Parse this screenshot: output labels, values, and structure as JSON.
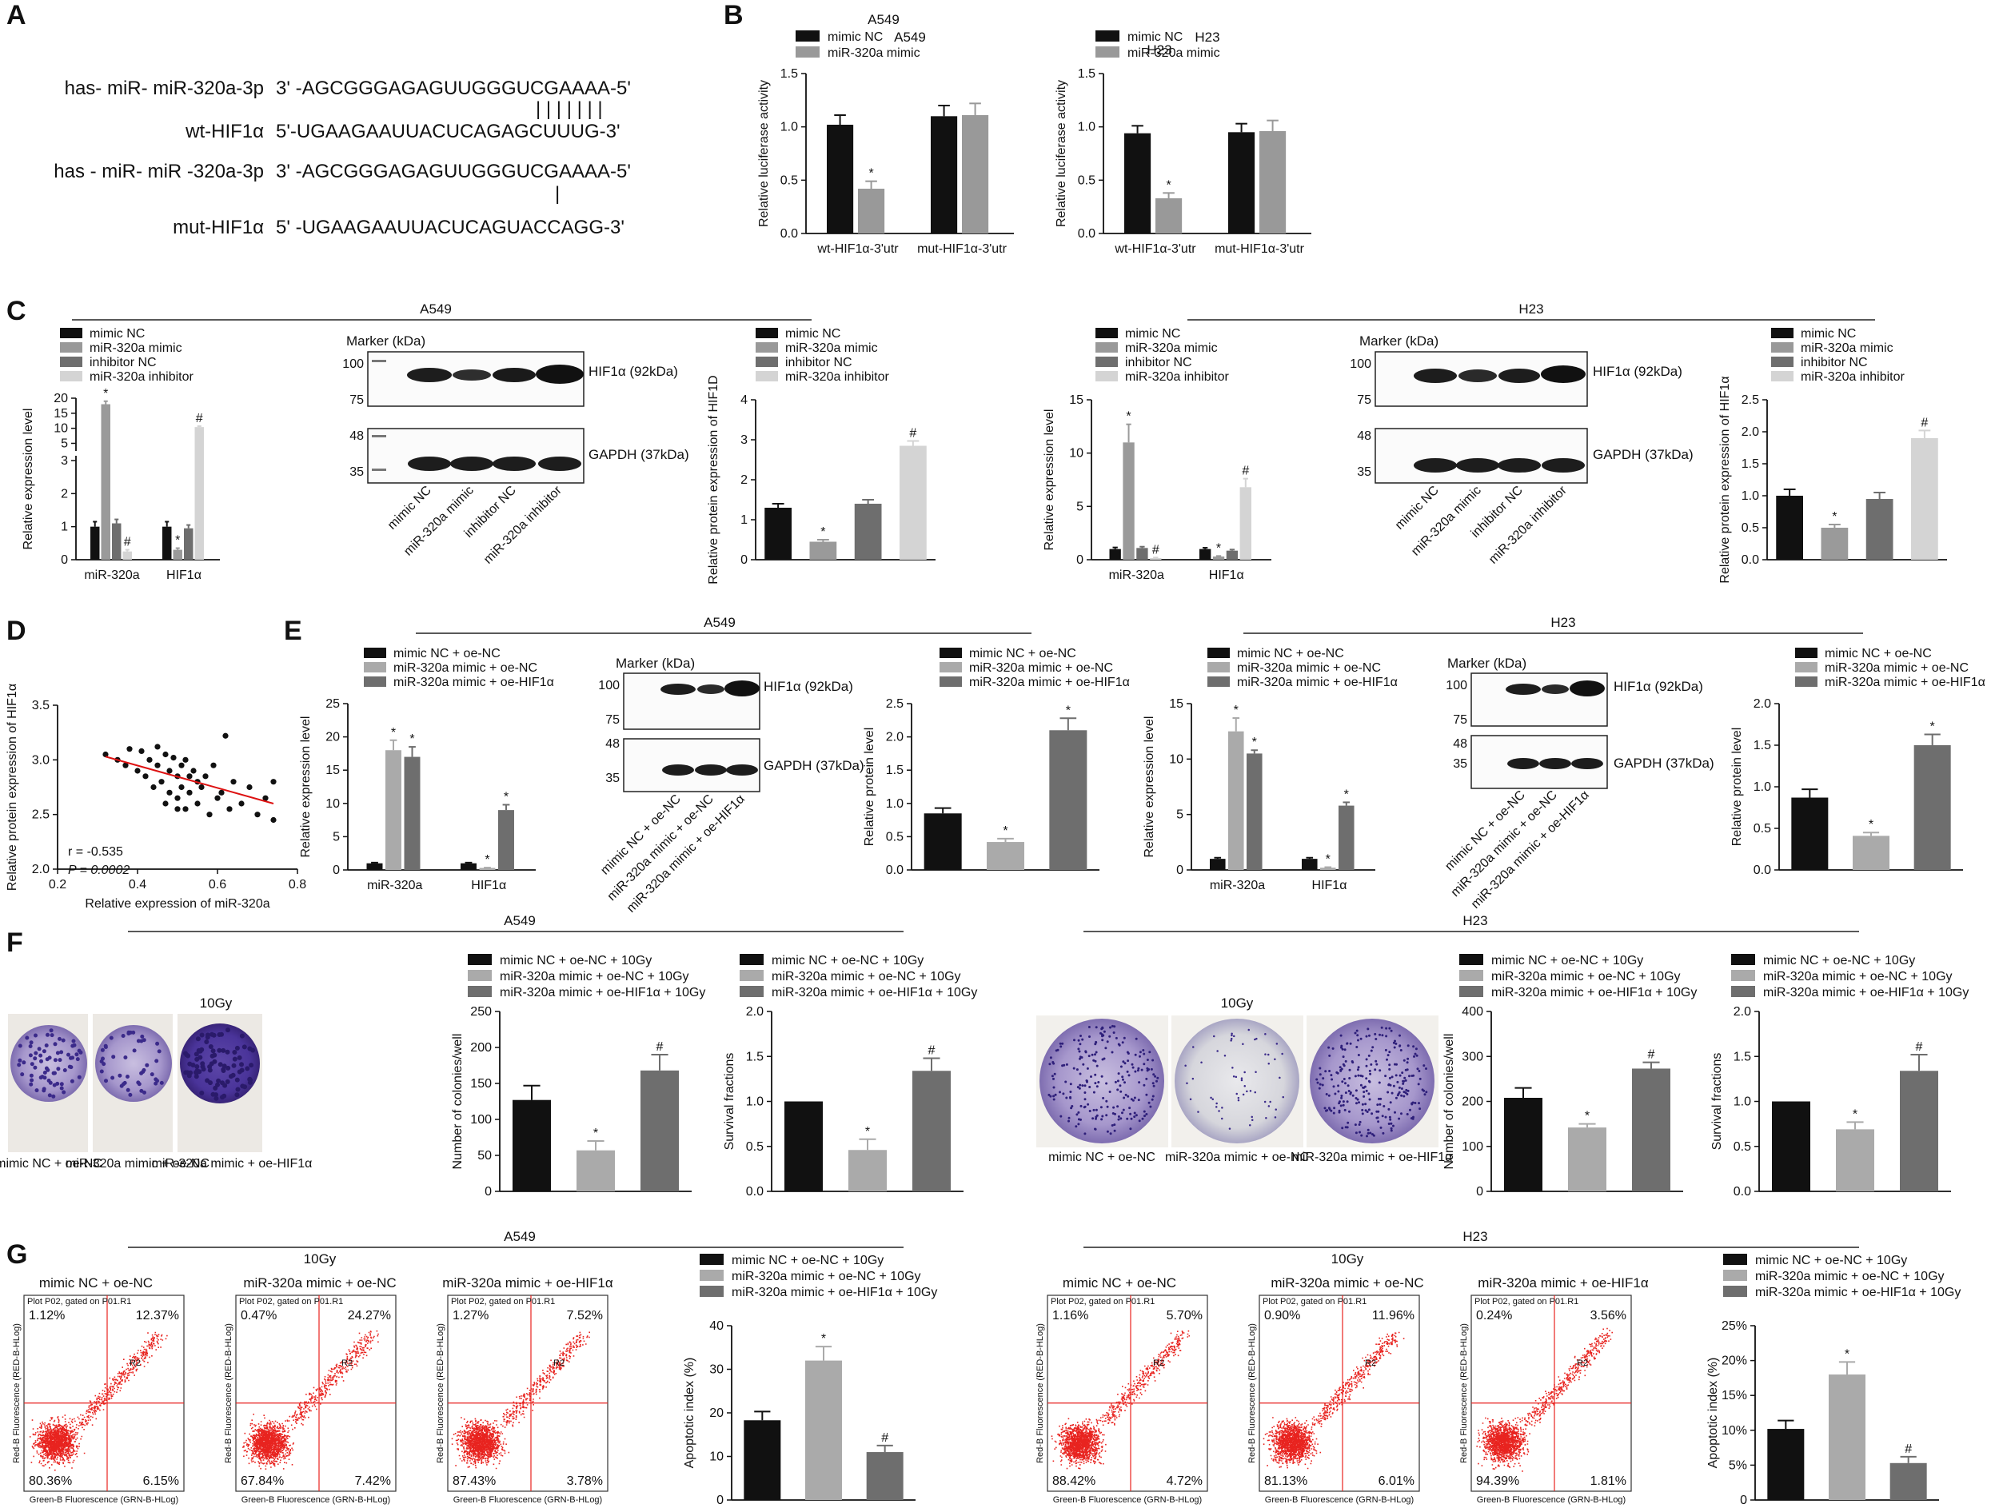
{
  "panels": {
    "A": "A",
    "B": "B",
    "C": "C",
    "D": "D",
    "E": "E",
    "F": "F",
    "G": "G"
  },
  "cells": {
    "a549": "A549",
    "h23": "H23"
  },
  "panelA": {
    "lines": [
      {
        "label": "has- miR- miR-320a-3p",
        "seq": "3' -AGCGGGAGAGUUGGGUCGAAAA-5'"
      },
      {
        "label": "wt-HIF1α",
        "seq": "5'-UGAAGAAUUACUCAGAGCUUUG-3'"
      },
      {
        "label": "has - miR- miR -320a-3p",
        "seq": "3' -AGCGGGAGAGUUGGGUCGAAAA-5'"
      },
      {
        "label": "mut-HIF1α",
        "seq": "5' -UGAAGAAUUACUCAGUACCAGG-3'"
      }
    ],
    "pairing1": "| | | | | | |",
    "pairing2": "|"
  },
  "legends": {
    "mimic2": [
      "mimic NC",
      "miR-320a mimic"
    ],
    "mimic4": [
      "mimic NC",
      "miR-320a mimic",
      "inhibitor NC",
      "miR-320a inhibitor"
    ],
    "oe3": [
      "mimic NC + oe-NC",
      "miR-320a mimic + oe-NC",
      "miR-320a mimic + oe-HIF1α"
    ],
    "oe3gy": [
      "mimic NC + oe-NC + 10Gy",
      "miR-320a mimic + oe-NC + 10Gy",
      "miR-320a mimic + oe-HIF1α + 10Gy"
    ]
  },
  "axis": {
    "luciferase": "Relative luciferase activity",
    "expression": "Relative expression level",
    "protein_hif1d": "Relative protein expression of HIF1D",
    "protein_hif1a": "Relative protein expression of HIF1α",
    "protein": "Relative protein level",
    "colonies": "Number of colonies/well",
    "survival": "Survival fractions",
    "apoptotic": "Apoptotic index (%)",
    "corr_x": "Relative expression of miR-320a",
    "corr_y": "Relative protein expression of HIF1α"
  },
  "western": {
    "marker": "Marker (kDa)",
    "hif": "HIF1α (92kDa)",
    "gapdh": "GAPDH (37kDa)",
    "mw": [
      "100",
      "75",
      "48",
      "35"
    ],
    "lanes4": [
      "mimic NC",
      "miR-320a mimic",
      "inhibitor NC",
      "miR-320a inhibitor"
    ],
    "lanes3": [
      "mimic NC + oe-NC",
      "miR-320a mimic + oe-NC",
      "miR-320a mimic + oe-HIF1α"
    ]
  },
  "colony": {
    "dose": "10Gy",
    "a549_labels": [
      "mimic NC + oe-NC",
      "miR-320a mimic + oe-NC",
      "miR-320a mimic + oe-HIF1α"
    ],
    "h23_labels": [
      "mimic NC + oe-NC",
      "miR-320a mimic + oe-NC",
      "miR-320a mimic + oe-HIF1α"
    ]
  },
  "flow": {
    "dose": "10Gy",
    "titles": [
      "mimic NC + oe-NC",
      "miR-320a mimic + oe-NC",
      "miR-320a mimic + oe-HIF1α"
    ],
    "header": "Plot P02, gated on P01.R1",
    "xaxis": "Green-B Fluorescence (GRN-B-HLog)",
    "yaxis": "Red-B Fluorescence (RED-B-HLog)",
    "gate": "R2",
    "a549_quadrants": [
      [
        "1.12%",
        "12.37%",
        "80.36%",
        "6.15%"
      ],
      [
        "0.47%",
        "24.27%",
        "67.84%",
        "7.42%"
      ],
      [
        "1.27%",
        "7.52%",
        "87.43%",
        "3.78%"
      ]
    ],
    "h23_quadrants": [
      [
        "1.16%",
        "5.70%",
        "88.42%",
        "4.72%"
      ],
      [
        "0.90%",
        "11.96%",
        "81.13%",
        "6.01%"
      ],
      [
        "0.24%",
        "3.56%",
        "94.39%",
        "1.81%"
      ]
    ]
  },
  "correlation": {
    "r": "r = -0.535",
    "p": "P = 0.0002"
  },
  "chart_data": [
    {
      "id": "B_A549",
      "type": "bar",
      "title": "A549",
      "categories": [
        "wt-HIF1α-3'utr",
        "mut-HIF1α-3'utr"
      ],
      "series": [
        {
          "name": "mimic NC",
          "values": [
            1.02,
            1.1
          ],
          "err": [
            0.09,
            0.1
          ]
        },
        {
          "name": "miR-320a mimic",
          "values": [
            0.42,
            1.11
          ],
          "err": [
            0.07,
            0.11
          ]
        }
      ],
      "ylim": [
        0,
        1.5
      ],
      "yticks": [
        "0.0",
        "0.5",
        "1.0",
        "1.5"
      ],
      "ylabel": "Relative luciferase activity",
      "marks": [
        [
          "",
          "*"
        ],
        [
          "",
          ""
        ]
      ]
    },
    {
      "id": "B_H23",
      "type": "bar",
      "title": "H23",
      "categories": [
        "wt-HIF1α-3'utr",
        "mut-HIF1α-3'utr"
      ],
      "series": [
        {
          "name": "mimic NC",
          "values": [
            0.94,
            0.95
          ],
          "err": [
            0.07,
            0.08
          ]
        },
        {
          "name": "miR-320a mimic",
          "values": [
            0.33,
            0.96
          ],
          "err": [
            0.05,
            0.1
          ]
        }
      ],
      "ylim": [
        0,
        1.5
      ],
      "yticks": [
        "0.0",
        "0.5",
        "1.0",
        "1.5"
      ],
      "ylabel": "Relative luciferase activity",
      "marks": [
        [
          "",
          "*"
        ],
        [
          "",
          ""
        ]
      ]
    },
    {
      "id": "C_A549_qpcr",
      "type": "bar",
      "categories": [
        "miR-320a",
        "HIF1α"
      ],
      "broken_axis": true,
      "series": [
        {
          "name": "mimic NC",
          "values": [
            1.0,
            1.0
          ],
          "err": [
            0.15,
            0.15
          ]
        },
        {
          "name": "miR-320a mimic",
          "values": [
            18.0,
            0.3
          ],
          "err": [
            1.0,
            0.05
          ]
        },
        {
          "name": "inhibitor NC",
          "values": [
            1.1,
            0.95
          ],
          "err": [
            0.12,
            0.1
          ]
        },
        {
          "name": "miR-320a inhibitor",
          "values": [
            0.25,
            10.4
          ],
          "err": [
            0.05,
            0.3
          ]
        }
      ],
      "yticks_lower": [
        "0",
        "1",
        "2",
        "3"
      ],
      "yticks_upper": [
        "5",
        "10",
        "15",
        "20"
      ],
      "ylabel": "Relative expression level",
      "marks": [
        [
          "",
          "*",
          "",
          "#"
        ],
        [
          "",
          "*",
          "",
          "#"
        ]
      ]
    },
    {
      "id": "C_A549_wb",
      "type": "bar",
      "categories": [
        "mimic NC",
        "miR-320a mimic",
        "inhibitor NC",
        "miR-320a inhibitor"
      ],
      "values": [
        1.3,
        0.45,
        1.4,
        2.85
      ],
      "err": [
        0.1,
        0.05,
        0.1,
        0.12
      ],
      "ylim": [
        0,
        4
      ],
      "yticks": [
        "0",
        "1",
        "2",
        "3",
        "4"
      ],
      "ylabel": "Relative protein expression of HIF1D",
      "marks": [
        "",
        "*",
        "",
        "#"
      ]
    },
    {
      "id": "C_H23_qpcr",
      "type": "bar",
      "categories": [
        "miR-320a",
        "HIF1α"
      ],
      "series": [
        {
          "name": "mimic NC",
          "values": [
            1.0,
            1.0
          ],
          "err": [
            0.15,
            0.12
          ]
        },
        {
          "name": "miR-320a mimic",
          "values": [
            11.0,
            0.3
          ],
          "err": [
            1.7,
            0.05
          ]
        },
        {
          "name": "inhibitor NC",
          "values": [
            1.1,
            0.85
          ],
          "err": [
            0.12,
            0.1
          ]
        },
        {
          "name": "miR-320a inhibitor",
          "values": [
            0.15,
            6.8
          ],
          "err": [
            0.05,
            0.8
          ]
        }
      ],
      "ylim": [
        0,
        15
      ],
      "yticks": [
        "0",
        "5",
        "10",
        "15"
      ],
      "ylabel": "Relative expression level",
      "marks": [
        [
          "",
          "*",
          "",
          "#"
        ],
        [
          "",
          "*",
          "",
          "#"
        ]
      ]
    },
    {
      "id": "C_H23_wb",
      "type": "bar",
      "categories": [
        "mimic NC",
        "miR-320a mimic",
        "inhibitor NC",
        "miR-320a inhibitor"
      ],
      "values": [
        1.0,
        0.5,
        0.95,
        1.9
      ],
      "err": [
        0.1,
        0.05,
        0.1,
        0.12
      ],
      "ylim": [
        0,
        2.5
      ],
      "yticks": [
        "0.0",
        "0.5",
        "1.0",
        "1.5",
        "2.0",
        "2.5"
      ],
      "ylabel": "Relative protein expression of HIF1α",
      "marks": [
        "",
        "*",
        "",
        "#"
      ]
    },
    {
      "id": "D_corr",
      "type": "scatter",
      "xlabel": "Relative expression of miR-320a",
      "ylabel": "Relative protein expression of HIF1α",
      "xlim": [
        0.2,
        0.8
      ],
      "ylim": [
        2.0,
        3.5
      ],
      "xticks": [
        "0.2",
        "0.4",
        "0.6",
        "0.8"
      ],
      "yticks": [
        "2.0",
        "2.5",
        "3.0",
        "3.5"
      ],
      "x": [
        0.32,
        0.35,
        0.37,
        0.38,
        0.4,
        0.41,
        0.42,
        0.43,
        0.44,
        0.45,
        0.45,
        0.46,
        0.47,
        0.47,
        0.48,
        0.48,
        0.49,
        0.5,
        0.5,
        0.51,
        0.51,
        0.52,
        0.52,
        0.53,
        0.53,
        0.54,
        0.55,
        0.55,
        0.56,
        0.57,
        0.58,
        0.59,
        0.6,
        0.61,
        0.62,
        0.63,
        0.64,
        0.66,
        0.68,
        0.7,
        0.72,
        0.74,
        0.74,
        0.5
      ],
      "y": [
        3.05,
        3.0,
        2.95,
        3.1,
        2.9,
        3.08,
        2.85,
        3.0,
        2.75,
        3.12,
        2.95,
        2.8,
        3.05,
        2.6,
        2.9,
        2.7,
        3.02,
        2.85,
        2.65,
        2.95,
        2.75,
        3.0,
        2.55,
        2.85,
        2.7,
        2.9,
        2.8,
        2.6,
        2.75,
        2.85,
        2.5,
        2.95,
        2.65,
        2.7,
        3.22,
        2.55,
        2.8,
        2.6,
        2.75,
        2.5,
        2.65,
        2.45,
        2.8,
        2.55
      ],
      "fit": [
        [
          0.32,
          3.03
        ],
        [
          0.74,
          2.6
        ]
      ],
      "r": -0.535,
      "p": 0.0002
    },
    {
      "id": "E_A549_qpcr",
      "type": "bar",
      "categories": [
        "miR-320a",
        "HIF1α"
      ],
      "series": [
        {
          "name": "mimic NC + oe-NC",
          "values": [
            1.0,
            1.0
          ],
          "err": [
            0.1,
            0.1
          ]
        },
        {
          "name": "miR-320a mimic + oe-NC",
          "values": [
            18.0,
            0.3
          ],
          "err": [
            1.5,
            0.05
          ]
        },
        {
          "name": "miR-320a mimic + oe-HIF1α",
          "values": [
            17.0,
            9.0
          ],
          "err": [
            1.5,
            0.8
          ]
        }
      ],
      "ylim": [
        0,
        25
      ],
      "yticks": [
        "0",
        "5",
        "10",
        "15",
        "20",
        "25"
      ],
      "ylabel": "Relative expression level",
      "marks": [
        [
          "",
          "*",
          "*"
        ],
        [
          "",
          "*",
          "*"
        ]
      ]
    },
    {
      "id": "E_A549_wb",
      "type": "bar",
      "categories": [
        "mimic NC + oe-NC",
        "miR-320a mimic + oe-NC",
        "miR-320a mimic + oe-HIF1α"
      ],
      "values": [
        0.85,
        0.42,
        2.1
      ],
      "err": [
        0.08,
        0.05,
        0.18
      ],
      "ylim": [
        0,
        2.5
      ],
      "yticks": [
        "0.0",
        "0.5",
        "1.0",
        "1.5",
        "2.0",
        "2.5"
      ],
      "ylabel": "Relative protein level",
      "marks": [
        "",
        "*",
        "*"
      ]
    },
    {
      "id": "E_H23_qpcr",
      "type": "bar",
      "categories": [
        "miR-320a",
        "HIF1α"
      ],
      "series": [
        {
          "name": "mimic NC + oe-NC",
          "values": [
            1.0,
            1.0
          ],
          "err": [
            0.1,
            0.1
          ]
        },
        {
          "name": "miR-320a mimic + oe-NC",
          "values": [
            12.5,
            0.2
          ],
          "err": [
            1.2,
            0.05
          ]
        },
        {
          "name": "miR-320a mimic + oe-HIF1α",
          "values": [
            10.5,
            5.8
          ],
          "err": [
            0.3,
            0.3
          ]
        }
      ],
      "ylim": [
        0,
        15
      ],
      "yticks": [
        "0",
        "5",
        "10",
        "15"
      ],
      "ylabel": "Relative expression level",
      "marks": [
        [
          "",
          "*",
          "*"
        ],
        [
          "",
          "*",
          "*"
        ]
      ]
    },
    {
      "id": "E_H23_wb",
      "type": "bar",
      "categories": [
        "mimic NC + oe-NC",
        "miR-320a mimic + oe-NC",
        "miR-320a mimic + oe-HIF1α"
      ],
      "values": [
        0.87,
        0.41,
        1.5
      ],
      "err": [
        0.1,
        0.04,
        0.13
      ],
      "ylim": [
        0,
        2.0
      ],
      "yticks": [
        "0.0",
        "0.5",
        "1.0",
        "1.5",
        "2.0"
      ],
      "ylabel": "Relative protein level",
      "marks": [
        "",
        "*",
        "*"
      ]
    },
    {
      "id": "F_A549_col",
      "type": "bar",
      "categories": [
        "mimic NC + oe-NC + 10Gy",
        "miR-320a mimic + oe-NC + 10Gy",
        "miR-320a mimic + oe-HIF1α + 10Gy"
      ],
      "values": [
        127,
        57,
        168
      ],
      "err": [
        20,
        13,
        22
      ],
      "ylim": [
        0,
        250
      ],
      "yticks": [
        "0",
        "50",
        "100",
        "150",
        "200",
        "250"
      ],
      "ylabel": "Number of colonies/well",
      "marks": [
        "",
        "*",
        "#"
      ]
    },
    {
      "id": "F_A549_surv",
      "type": "bar",
      "categories": [
        "mimic NC + oe-NC + 10Gy",
        "miR-320a mimic + oe-NC + 10Gy",
        "miR-320a mimic + oe-HIF1α + 10Gy"
      ],
      "values": [
        1.0,
        0.46,
        1.34
      ],
      "err": [
        0,
        0.12,
        0.14
      ],
      "ylim": [
        0,
        2.0
      ],
      "yticks": [
        "0.0",
        "0.5",
        "1.0",
        "1.5",
        "2.0"
      ],
      "ylabel": "Survival fractions",
      "marks": [
        "",
        "*",
        "#"
      ]
    },
    {
      "id": "F_H23_col",
      "type": "bar",
      "categories": [
        "mimic NC + oe-NC + 10Gy",
        "miR-320a mimic + oe-NC + 10Gy",
        "miR-320a mimic + oe-HIF1α + 10Gy"
      ],
      "values": [
        208,
        142,
        273
      ],
      "err": [
        22,
        8,
        14
      ],
      "ylim": [
        0,
        400
      ],
      "yticks": [
        "0",
        "100",
        "200",
        "300",
        "400"
      ],
      "ylabel": "Number of colonies/well",
      "marks": [
        "",
        "*",
        "#"
      ]
    },
    {
      "id": "F_H23_surv",
      "type": "bar",
      "categories": [
        "mimic NC + oe-NC + 10Gy",
        "miR-320a mimic + oe-NC + 10Gy",
        "miR-320a mimic + oe-HIF1α + 10Gy"
      ],
      "values": [
        1.0,
        0.69,
        1.34
      ],
      "err": [
        0,
        0.08,
        0.18
      ],
      "ylim": [
        0,
        2.0
      ],
      "yticks": [
        "0.0",
        "0.5",
        "1.0",
        "1.5",
        "2.0"
      ],
      "ylabel": "Survival fractions",
      "marks": [
        "",
        "*",
        "#"
      ]
    },
    {
      "id": "G_A549_apo",
      "type": "bar",
      "categories": [
        "mimic NC + oe-NC + 10Gy",
        "miR-320a mimic + oe-NC + 10Gy",
        "miR-320a mimic + oe-HIF1α + 10Gy"
      ],
      "values": [
        18.3,
        32.0,
        11.0
      ],
      "err": [
        2.0,
        3.2,
        1.5
      ],
      "ylim": [
        0,
        40
      ],
      "yticks": [
        "0",
        "10",
        "20",
        "30",
        "40"
      ],
      "ylabel": "Apoptotic index (%)",
      "marks": [
        "",
        "*",
        "#"
      ]
    },
    {
      "id": "G_H23_apo",
      "type": "bar",
      "categories": [
        "mimic NC + oe-NC + 10Gy",
        "miR-320a mimic + oe-NC + 10Gy",
        "miR-320a mimic + oe-HIF1α + 10Gy"
      ],
      "values": [
        10.2,
        18.0,
        5.3
      ],
      "err": [
        1.2,
        1.8,
        0.9
      ],
      "ylim": [
        0,
        25
      ],
      "yticks": [
        "0",
        "5%",
        "10%",
        "15%",
        "20%",
        "25%"
      ],
      "ylabel": "Apoptotic index (%)",
      "marks": [
        "",
        "*",
        "#"
      ]
    }
  ]
}
